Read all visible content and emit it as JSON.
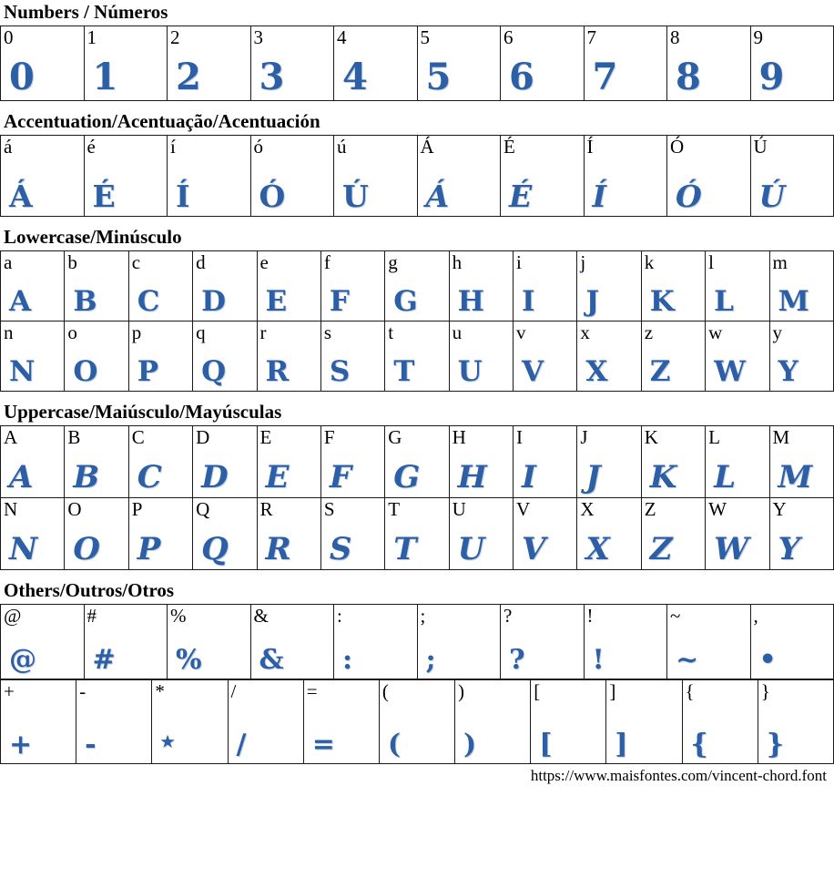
{
  "colors": {
    "accent": "#2d5fa6",
    "border": "#1a1a1a"
  },
  "footer": {
    "url": "https://www.maisfontes.com/vincent-chord.font"
  },
  "sections": [
    {
      "id": "numbers",
      "title": "Numbers / Números",
      "tables": [
        {
          "rows": [
            [
              {
                "label": "0",
                "glyph": "0"
              },
              {
                "label": "1",
                "glyph": "1"
              },
              {
                "label": "2",
                "glyph": "2"
              },
              {
                "label": "3",
                "glyph": "3"
              },
              {
                "label": "4",
                "glyph": "4"
              },
              {
                "label": "5",
                "glyph": "5"
              },
              {
                "label": "6",
                "glyph": "6"
              },
              {
                "label": "7",
                "glyph": "7"
              },
              {
                "label": "8",
                "glyph": "8"
              },
              {
                "label": "9",
                "glyph": "9"
              }
            ]
          ]
        }
      ]
    },
    {
      "id": "accentuation",
      "title": "Accentuation/Acentuação/Acentuación",
      "tables": [
        {
          "rows": [
            [
              {
                "label": "á",
                "glyph": "Á"
              },
              {
                "label": "é",
                "glyph": "É"
              },
              {
                "label": "í",
                "glyph": "Í"
              },
              {
                "label": "ó",
                "glyph": "Ó"
              },
              {
                "label": "ú",
                "glyph": "Ú"
              },
              {
                "label": "Á",
                "glyph": "Á",
                "curly": true
              },
              {
                "label": "É",
                "glyph": "É",
                "curly": true
              },
              {
                "label": "Í",
                "glyph": "Í",
                "curly": true
              },
              {
                "label": "Ó",
                "glyph": "Ó",
                "curly": true
              },
              {
                "label": "Ú",
                "glyph": "Ú",
                "curly": true
              }
            ]
          ]
        }
      ]
    },
    {
      "id": "lowercase",
      "title": "Lowercase/Minúsculo",
      "tables": [
        {
          "rows": [
            [
              {
                "label": "a",
                "glyph": "A"
              },
              {
                "label": "b",
                "glyph": "B"
              },
              {
                "label": "c",
                "glyph": "C"
              },
              {
                "label": "d",
                "glyph": "D"
              },
              {
                "label": "e",
                "glyph": "E"
              },
              {
                "label": "f",
                "glyph": "F"
              },
              {
                "label": "g",
                "glyph": "G"
              },
              {
                "label": "h",
                "glyph": "H"
              },
              {
                "label": "i",
                "glyph": "I"
              },
              {
                "label": "j",
                "glyph": "J"
              },
              {
                "label": "k",
                "glyph": "K"
              },
              {
                "label": "l",
                "glyph": "L"
              },
              {
                "label": "m",
                "glyph": "M"
              }
            ],
            [
              {
                "label": "n",
                "glyph": "N"
              },
              {
                "label": "o",
                "glyph": "O"
              },
              {
                "label": "p",
                "glyph": "P"
              },
              {
                "label": "q",
                "glyph": "Q"
              },
              {
                "label": "r",
                "glyph": "R"
              },
              {
                "label": "s",
                "glyph": "S"
              },
              {
                "label": "t",
                "glyph": "T"
              },
              {
                "label": "u",
                "glyph": "U"
              },
              {
                "label": "v",
                "glyph": "V"
              },
              {
                "label": "x",
                "glyph": "X"
              },
              {
                "label": "z",
                "glyph": "Z"
              },
              {
                "label": "w",
                "glyph": "W"
              },
              {
                "label": "y",
                "glyph": "Y"
              }
            ]
          ]
        }
      ]
    },
    {
      "id": "uppercase",
      "title": "Uppercase/Maiúsculo/Mayúsculas",
      "tables": [
        {
          "rows": [
            [
              {
                "label": "A",
                "glyph": "A",
                "curly": true
              },
              {
                "label": "B",
                "glyph": "B",
                "curly": true
              },
              {
                "label": "C",
                "glyph": "C",
                "curly": true
              },
              {
                "label": "D",
                "glyph": "D",
                "curly": true
              },
              {
                "label": "E",
                "glyph": "E",
                "curly": true
              },
              {
                "label": "F",
                "glyph": "F",
                "curly": true
              },
              {
                "label": "G",
                "glyph": "G",
                "curly": true
              },
              {
                "label": "H",
                "glyph": "H",
                "curly": true
              },
              {
                "label": "I",
                "glyph": "I",
                "curly": true
              },
              {
                "label": "J",
                "glyph": "J",
                "curly": true
              },
              {
                "label": "K",
                "glyph": "K",
                "curly": true
              },
              {
                "label": "L",
                "glyph": "L",
                "curly": true
              },
              {
                "label": "M",
                "glyph": "M",
                "curly": true
              }
            ],
            [
              {
                "label": "N",
                "glyph": "N",
                "curly": true
              },
              {
                "label": "O",
                "glyph": "O",
                "curly": true
              },
              {
                "label": "P",
                "glyph": "P",
                "curly": true
              },
              {
                "label": "Q",
                "glyph": "Q",
                "curly": true
              },
              {
                "label": "R",
                "glyph": "R",
                "curly": true
              },
              {
                "label": "S",
                "glyph": "S",
                "curly": true
              },
              {
                "label": "T",
                "glyph": "T",
                "curly": true
              },
              {
                "label": "U",
                "glyph": "U",
                "curly": true
              },
              {
                "label": "V",
                "glyph": "V",
                "curly": true
              },
              {
                "label": "X",
                "glyph": "X",
                "curly": true
              },
              {
                "label": "Z",
                "glyph": "Z",
                "curly": true
              },
              {
                "label": "W",
                "glyph": "W",
                "curly": true
              },
              {
                "label": "Y",
                "glyph": "Y",
                "curly": true
              }
            ]
          ]
        }
      ]
    },
    {
      "id": "others",
      "title": "Others/Outros/Otros",
      "tables": [
        {
          "rows": [
            [
              {
                "label": "@",
                "glyph": "@"
              },
              {
                "label": "#",
                "glyph": "#"
              },
              {
                "label": "%",
                "glyph": "%"
              },
              {
                "label": "&",
                "glyph": "&"
              },
              {
                "label": ":",
                "glyph": ":"
              },
              {
                "label": ";",
                "glyph": ";"
              },
              {
                "label": "?",
                "glyph": "?"
              },
              {
                "label": "!",
                "glyph": "!"
              },
              {
                "label": "~",
                "glyph": "~"
              },
              {
                "label": ",",
                "glyph": "•"
              }
            ]
          ]
        },
        {
          "rows": [
            [
              {
                "label": "+",
                "glyph": "+"
              },
              {
                "label": "-",
                "glyph": "-"
              },
              {
                "label": "*",
                "glyph": "★",
                "sm": true
              },
              {
                "label": "/",
                "glyph": "/"
              },
              {
                "label": "=",
                "glyph": "="
              },
              {
                "label": "(",
                "glyph": "("
              },
              {
                "label": ")",
                "glyph": ")"
              },
              {
                "label": "[",
                "glyph": "["
              },
              {
                "label": "]",
                "glyph": "]"
              },
              {
                "label": "{",
                "glyph": "{"
              },
              {
                "label": "}",
                "glyph": "}"
              }
            ]
          ]
        }
      ]
    }
  ]
}
